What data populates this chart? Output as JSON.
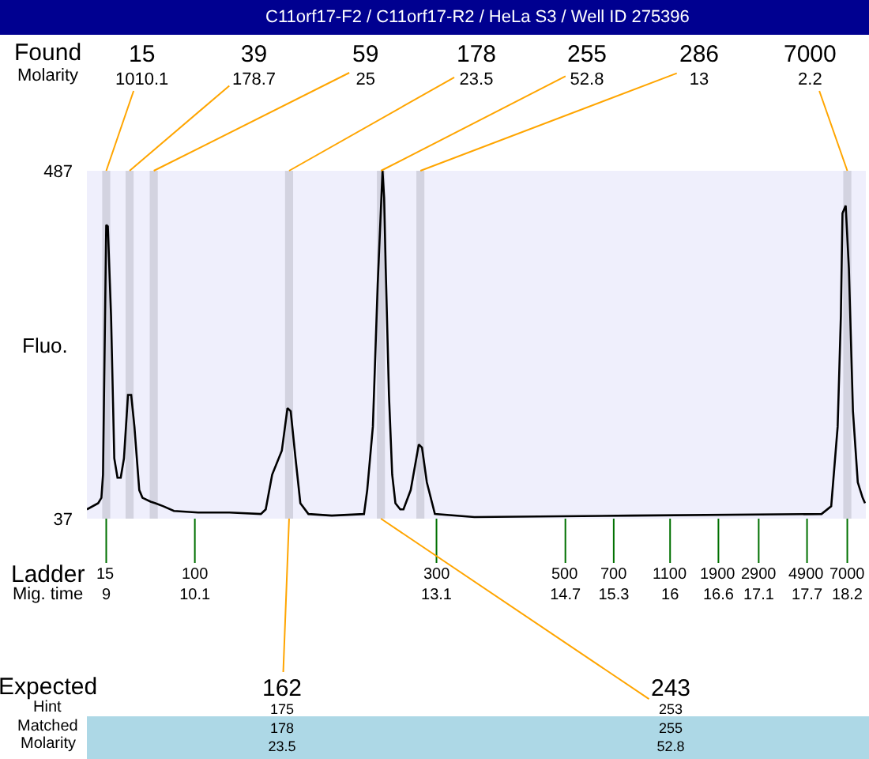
{
  "chart_data": {
    "type": "line",
    "title": "C11orf17-F2 / C11orf17-R2 / HeLa S3 / Well ID 275396",
    "ylabel": "Fluo.",
    "x": [
      8.76,
      8.9,
      8.94,
      8.96,
      9.0,
      9.02,
      9.06,
      9.1,
      9.14,
      9.18,
      9.22,
      9.27,
      9.31,
      9.35,
      9.41,
      9.45,
      9.55,
      9.61,
      9.71,
      9.84,
      10.14,
      10.53,
      10.92,
      10.98,
      11.06,
      11.18,
      11.25,
      11.29,
      11.35,
      11.41,
      11.51,
      11.8,
      12.2,
      12.24,
      12.31,
      12.37,
      12.43,
      12.45,
      12.47,
      12.51,
      12.55,
      12.59,
      12.65,
      12.69,
      12.78,
      12.88,
      12.92,
      12.98,
      13.08,
      13.57,
      15.53,
      17.88,
      18.0,
      18.08,
      18.12,
      18.14,
      18.18,
      18.22,
      18.27,
      18.33,
      18.39,
      18.42
    ],
    "series": [
      {
        "color": "#000000",
        "values": [
          49,
          57,
          64,
          94,
          417,
          415,
          299,
          115,
          90,
          90,
          115,
          197,
          197,
          156,
          74,
          64,
          59,
          57,
          53,
          47,
          45,
          45,
          43,
          49,
          94,
          125,
          180,
          176,
          115,
          57,
          43,
          41,
          43,
          74,
          156,
          340,
          487,
          452,
          360,
          197,
          94,
          57,
          49,
          49,
          74,
          133,
          129,
          84,
          43,
          39,
          41,
          43,
          53,
          156,
          299,
          432,
          442,
          360,
          176,
          84,
          64,
          57
        ]
      }
    ],
    "xlim": [
      8.76,
      18.43
    ],
    "ylim": [
      37,
      487
    ],
    "yticks": [
      37,
      487
    ],
    "xticks": [
      9,
      10.1,
      13.1,
      14.7,
      15.3,
      16,
      16.6,
      17.1,
      17.7,
      18.2
    ],
    "bands": [
      {
        "axis": "x",
        "from": 8.95,
        "to": 9.05,
        "color": "#d3d3e0"
      },
      {
        "axis": "x",
        "from": 9.24,
        "to": 9.34,
        "color": "#d3d3e0"
      },
      {
        "axis": "x",
        "from": 9.54,
        "to": 9.64,
        "color": "#d3d3e0"
      },
      {
        "axis": "x",
        "from": 11.22,
        "to": 11.32,
        "color": "#d3d3e0"
      },
      {
        "axis": "x",
        "from": 12.36,
        "to": 12.46,
        "color": "#d3d3e0"
      },
      {
        "axis": "x",
        "from": 12.85,
        "to": 12.95,
        "color": "#d3d3e0"
      },
      {
        "axis": "x",
        "from": 18.15,
        "to": 18.25,
        "color": "#d3d3e0"
      }
    ],
    "annotations": [
      "Found",
      "Molarity",
      "Ladder",
      "Mig. time",
      "Expected",
      "Hint",
      "Matched",
      "Molarity",
      {
        "text": "15\n1010.1",
        "x": 9.0,
        "y": 487
      },
      {
        "text": "39\n178.7",
        "x": 9.29,
        "y": 487
      },
      {
        "text": "59\n25",
        "x": 9.59,
        "y": 487
      },
      {
        "text": "178\n23.5",
        "x": 11.27,
        "y": 487
      },
      {
        "text": "255\n52.8",
        "x": 12.41,
        "y": 487
      },
      {
        "text": "286\n13",
        "x": 12.9,
        "y": 487
      },
      {
        "text": "7000\n2.2",
        "x": 18.2,
        "y": 487
      },
      {
        "text": "15",
        "x": 9,
        "y": 37
      },
      {
        "text": "100",
        "x": 10.1,
        "y": 37
      },
      {
        "text": "300",
        "x": 13.1,
        "y": 37
      },
      {
        "text": "500",
        "x": 14.7,
        "y": 37
      },
      {
        "text": "700",
        "x": 15.3,
        "y": 37
      },
      {
        "text": "1100",
        "x": 16,
        "y": 37
      },
      {
        "text": "1900",
        "x": 16.6,
        "y": 37
      },
      {
        "text": "2900",
        "x": 17.1,
        "y": 37
      },
      {
        "text": "4900",
        "x": 17.7,
        "y": 37
      },
      {
        "text": "7000",
        "x": 18.2,
        "y": 37
      },
      {
        "text": "162\n175\n178\n23.5",
        "x": 11.27,
        "y": 37
      },
      {
        "text": "243\n253\n255\n52.8",
        "x": 12.41,
        "y": 37
      }
    ],
    "grid": false
  }
}
